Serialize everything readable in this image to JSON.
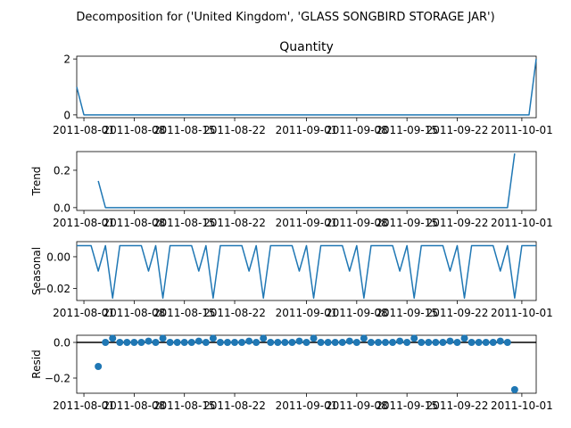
{
  "chart_data": {
    "suptitle": "Decomposition for ('United Kingdom', 'GLASS SONGBIRD STORAGE JAR')",
    "x_tick_labels": [
      "2011-08-01",
      "2011-08-08",
      "2011-08-15",
      "2011-08-22",
      "2011-09-01",
      "2011-09-08",
      "2011-09-15",
      "2011-09-22",
      "2011-10-01"
    ],
    "x_tick_days": [
      0,
      7,
      14,
      21,
      31,
      38,
      45,
      52,
      61
    ],
    "x_range_days": [
      -1,
      63
    ],
    "panels": [
      {
        "type": "line",
        "title": "Quantity",
        "ylabel": "",
        "ylim": [
          -0.1,
          2.1
        ],
        "yticks": [
          0,
          2
        ],
        "ytick_labels": [
          "0",
          "2"
        ],
        "color": "#1f77b4",
        "x": [
          -1,
          0,
          1,
          61,
          62,
          63
        ],
        "y": [
          1,
          0,
          0,
          0,
          0,
          2
        ]
      },
      {
        "type": "line",
        "title": "",
        "ylabel": "Trend",
        "ylim": [
          -0.015,
          0.3
        ],
        "yticks": [
          0,
          0.2
        ],
        "ytick_labels": [
          "0.0",
          "0.2"
        ],
        "color": "#1f77b4",
        "x": [
          2,
          3,
          59,
          60
        ],
        "y": [
          0.143,
          0,
          0,
          0.29
        ]
      },
      {
        "type": "line",
        "title": "",
        "ylabel": "Seasonal",
        "ylim": [
          -0.0275,
          0.0095
        ],
        "yticks": [
          0,
          -0.02
        ],
        "ytick_labels": [
          "0.00",
          "−0.02"
        ],
        "color": "#1f77b4",
        "x": [
          -1,
          0,
          1,
          2,
          3,
          4,
          5,
          6,
          7,
          8,
          9,
          10,
          11,
          12,
          13,
          14,
          15,
          16,
          17,
          18,
          19,
          20,
          21,
          22,
          23,
          24,
          25,
          26,
          27,
          28,
          29,
          30,
          31,
          32,
          33,
          34,
          35,
          36,
          37,
          38,
          39,
          40,
          41,
          42,
          43,
          44,
          45,
          46,
          47,
          48,
          49,
          50,
          51,
          52,
          53,
          54,
          55,
          56,
          57,
          58,
          59,
          60,
          61,
          62,
          63
        ],
        "y": [
          0.007,
          0.007,
          0.007,
          -0.009,
          0.007,
          -0.026,
          0.007,
          0.007,
          0.007,
          0.007,
          -0.009,
          0.007,
          -0.026,
          0.007,
          0.007,
          0.007,
          0.007,
          -0.009,
          0.007,
          -0.026,
          0.007,
          0.007,
          0.007,
          0.007,
          -0.009,
          0.007,
          -0.026,
          0.007,
          0.007,
          0.007,
          0.007,
          -0.009,
          0.007,
          -0.026,
          0.007,
          0.007,
          0.007,
          0.007,
          -0.009,
          0.007,
          -0.026,
          0.007,
          0.007,
          0.007,
          0.007,
          -0.009,
          0.007,
          -0.026,
          0.007,
          0.007,
          0.007,
          0.007,
          -0.009,
          0.007,
          -0.026,
          0.007,
          0.007,
          0.007,
          0.007,
          -0.009,
          0.007,
          -0.026,
          0.007,
          0.007,
          0.007
        ]
      },
      {
        "type": "scatter",
        "title": "",
        "ylabel": "Resid",
        "ylim": [
          -0.285,
          0.04
        ],
        "yticks": [
          0,
          -0.2
        ],
        "ytick_labels": [
          "0.0",
          "−0.2"
        ],
        "color": "#1f77b4",
        "baseline": 0,
        "x": [
          2,
          3,
          4,
          5,
          6,
          7,
          8,
          9,
          10,
          11,
          12,
          13,
          14,
          15,
          16,
          17,
          18,
          19,
          20,
          21,
          22,
          23,
          24,
          25,
          26,
          27,
          28,
          29,
          30,
          31,
          32,
          33,
          34,
          35,
          36,
          37,
          38,
          39,
          40,
          41,
          42,
          43,
          44,
          45,
          46,
          47,
          48,
          49,
          50,
          51,
          52,
          53,
          54,
          55,
          56,
          57,
          58,
          59,
          60
        ],
        "y": [
          -0.135,
          0,
          0.023,
          0,
          0,
          0,
          0,
          0.007,
          0,
          0.023,
          0,
          0,
          0,
          0,
          0.007,
          0,
          0.023,
          0,
          0,
          0,
          0,
          0.007,
          0,
          0.023,
          0,
          0,
          0,
          0,
          0.007,
          0,
          0.023,
          0,
          0,
          0,
          0,
          0.007,
          0,
          0.023,
          0,
          0,
          0,
          0,
          0.007,
          0,
          0.023,
          0,
          0,
          0,
          0,
          0.007,
          0,
          0.023,
          0,
          0,
          0,
          0,
          0.007,
          0,
          -0.265
        ]
      }
    ]
  }
}
